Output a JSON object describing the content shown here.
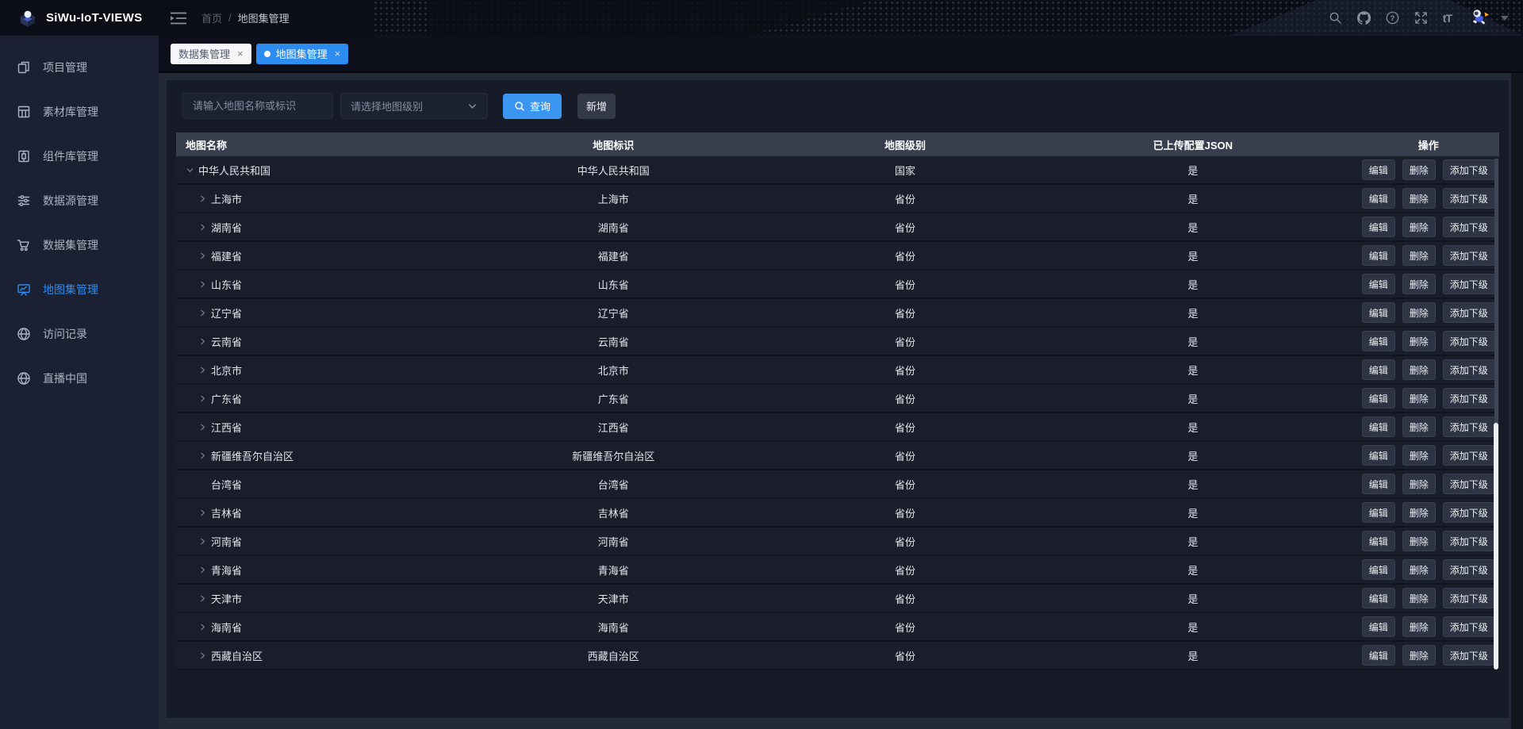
{
  "app": {
    "title": "SiWu-IoT-VIEWS"
  },
  "colors": {
    "accent": "#2d8cf0",
    "query_button": "#3b96f2",
    "active_tab": "#2d8cf0",
    "header_bg": "#0b0e16",
    "sidebar_bg": "#1b2032",
    "card_bg": "#171b28",
    "table_header_bg": "#373e4e"
  },
  "header": {
    "breadcrumb": {
      "home": "首页",
      "separator": "/",
      "current": "地图集管理"
    },
    "right_icons": [
      {
        "name": "search-icon"
      },
      {
        "name": "github-icon"
      },
      {
        "name": "help-icon"
      },
      {
        "name": "fullscreen-icon"
      },
      {
        "name": "font-size-icon",
        "label": "tT"
      },
      {
        "name": "user-avatar"
      },
      {
        "name": "caret-down-icon"
      }
    ]
  },
  "sidebar": {
    "items": [
      {
        "label": "项目管理",
        "icon": "project-icon",
        "active": false
      },
      {
        "label": "素材库管理",
        "icon": "material-icon",
        "active": false
      },
      {
        "label": "组件库管理",
        "icon": "component-icon",
        "active": false
      },
      {
        "label": "数据源管理",
        "icon": "datasource-icon",
        "active": false
      },
      {
        "label": "数据集管理",
        "icon": "dataset-icon",
        "active": false
      },
      {
        "label": "地图集管理",
        "icon": "mapset-icon",
        "active": true
      },
      {
        "label": "访问记录",
        "icon": "globe-icon",
        "active": false
      },
      {
        "label": "直播中国",
        "icon": "globe-icon",
        "active": false
      }
    ]
  },
  "tabs": [
    {
      "label": "数据集管理",
      "active": false,
      "close": "×"
    },
    {
      "label": "地图集管理",
      "active": true,
      "close": "×"
    }
  ],
  "filters": {
    "name_placeholder": "请输入地图名称或标识",
    "level_placeholder": "请选择地图级别",
    "search_label": "查询",
    "add_label": "新增"
  },
  "table": {
    "columns": [
      "地图名称",
      "地图标识",
      "地图级别",
      "已上传配置JSON",
      "操作"
    ],
    "actions": [
      "编辑",
      "删除",
      "添加下级"
    ],
    "rows": [
      {
        "name": "中华人民共和国",
        "code": "中华人民共和国",
        "level": "国家",
        "uploaded": "是",
        "depth": 0,
        "expand": "down"
      },
      {
        "name": "上海市",
        "code": "上海市",
        "level": "省份",
        "uploaded": "是",
        "depth": 1,
        "expand": "right"
      },
      {
        "name": "湖南省",
        "code": "湖南省",
        "level": "省份",
        "uploaded": "是",
        "depth": 1,
        "expand": "right"
      },
      {
        "name": "福建省",
        "code": "福建省",
        "level": "省份",
        "uploaded": "是",
        "depth": 1,
        "expand": "right"
      },
      {
        "name": "山东省",
        "code": "山东省",
        "level": "省份",
        "uploaded": "是",
        "depth": 1,
        "expand": "right"
      },
      {
        "name": "辽宁省",
        "code": "辽宁省",
        "level": "省份",
        "uploaded": "是",
        "depth": 1,
        "expand": "right"
      },
      {
        "name": "云南省",
        "code": "云南省",
        "level": "省份",
        "uploaded": "是",
        "depth": 1,
        "expand": "right"
      },
      {
        "name": "北京市",
        "code": "北京市",
        "level": "省份",
        "uploaded": "是",
        "depth": 1,
        "expand": "right"
      },
      {
        "name": "广东省",
        "code": "广东省",
        "level": "省份",
        "uploaded": "是",
        "depth": 1,
        "expand": "right"
      },
      {
        "name": "江西省",
        "code": "江西省",
        "level": "省份",
        "uploaded": "是",
        "depth": 1,
        "expand": "right"
      },
      {
        "name": "新疆维吾尔自治区",
        "code": "新疆维吾尔自治区",
        "level": "省份",
        "uploaded": "是",
        "depth": 1,
        "expand": "right"
      },
      {
        "name": "台湾省",
        "code": "台湾省",
        "level": "省份",
        "uploaded": "是",
        "depth": 1,
        "expand": "none"
      },
      {
        "name": "吉林省",
        "code": "吉林省",
        "level": "省份",
        "uploaded": "是",
        "depth": 1,
        "expand": "right"
      },
      {
        "name": "河南省",
        "code": "河南省",
        "level": "省份",
        "uploaded": "是",
        "depth": 1,
        "expand": "right"
      },
      {
        "name": "青海省",
        "code": "青海省",
        "level": "省份",
        "uploaded": "是",
        "depth": 1,
        "expand": "right"
      },
      {
        "name": "天津市",
        "code": "天津市",
        "level": "省份",
        "uploaded": "是",
        "depth": 1,
        "expand": "right"
      },
      {
        "name": "海南省",
        "code": "海南省",
        "level": "省份",
        "uploaded": "是",
        "depth": 1,
        "expand": "right"
      },
      {
        "name": "西藏自治区",
        "code": "西藏自治区",
        "level": "省份",
        "uploaded": "是",
        "depth": 1,
        "expand": "right"
      }
    ]
  }
}
